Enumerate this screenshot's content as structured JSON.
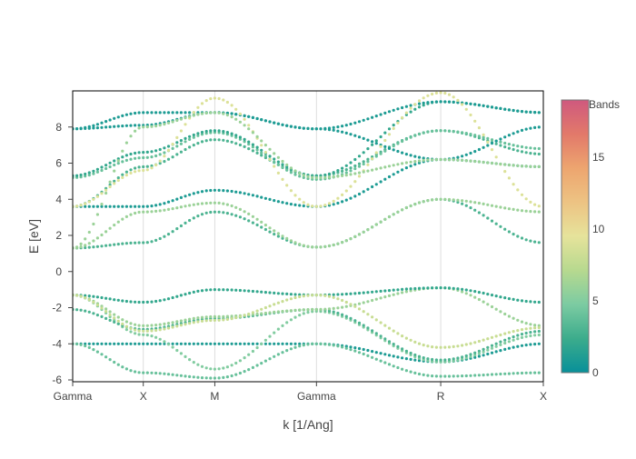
{
  "chart_data": {
    "type": "scatter",
    "title": "",
    "xlabel": "k [1/Ang]",
    "ylabel": "E [eV]",
    "ylim": [
      -6.1,
      10.0
    ],
    "yticks": [
      -6,
      -4,
      -2,
      0,
      2,
      4,
      6,
      8
    ],
    "xticks": [
      {
        "label": "Gamma",
        "k": 0.0
      },
      {
        "label": "X",
        "k": 0.15
      },
      {
        "label": "M",
        "k": 0.302
      },
      {
        "label": "Gamma",
        "k": 0.518
      },
      {
        "label": "R",
        "k": 0.782
      },
      {
        "label": "X",
        "k": 1.0
      }
    ],
    "grid": "vertical at high-symmetry points",
    "colorbar": {
      "title": "Bands",
      "range": [
        0,
        19
      ],
      "ticks": [
        0,
        5,
        10,
        15
      ],
      "colorscale": [
        "#089099",
        "#3cac8c",
        "#7ccba2",
        "#b7d98f",
        "#e6e39b",
        "#edc383",
        "#eda56f",
        "#e2796a",
        "#cf597e"
      ]
    },
    "bands_at_high_symmetry_points": [
      {
        "E": [
          -4.0,
          -4.0,
          -4.0,
          -4.0,
          -5.0,
          -4.0
        ],
        "c": 1
      },
      {
        "E": [
          -4.0,
          -5.6,
          -5.9,
          -4.0,
          -5.8,
          -5.6
        ],
        "c": 4
      },
      {
        "E": [
          -1.3,
          -3.5,
          -5.4,
          -2.2,
          -5.0,
          -3.5
        ],
        "c": 5
      },
      {
        "E": [
          -2.1,
          -3.2,
          -2.6,
          -2.1,
          -4.9,
          -3.3
        ],
        "c": 3
      },
      {
        "E": [
          -1.3,
          -3.0,
          -2.5,
          -2.1,
          -0.9,
          -3.0
        ],
        "c": 6
      },
      {
        "E": [
          -1.3,
          -1.7,
          -1.0,
          -1.3,
          -0.9,
          -1.7
        ],
        "c": 2
      },
      {
        "E": [
          -1.3,
          -3.3,
          -2.7,
          -1.3,
          -4.2,
          -3.1
        ],
        "c": 8
      },
      {
        "E": [
          1.3,
          1.6,
          3.3,
          1.35,
          4.0,
          1.6
        ],
        "c": 3
      },
      {
        "E": [
          1.3,
          3.3,
          3.8,
          1.35,
          4.0,
          3.3
        ],
        "c": 6
      },
      {
        "E": [
          3.6,
          3.6,
          4.5,
          3.6,
          6.2,
          5.8
        ],
        "c": 1
      },
      {
        "E": [
          3.6,
          5.8,
          7.3,
          5.3,
          7.8,
          6.5
        ],
        "c": 3
      },
      {
        "E": [
          5.2,
          6.3,
          7.7,
          5.1,
          7.8,
          6.8
        ],
        "c": 4
      },
      {
        "E": [
          5.3,
          6.6,
          7.8,
          5.3,
          9.4,
          8.8
        ],
        "c": 2
      },
      {
        "E": [
          7.9,
          8.1,
          8.8,
          7.9,
          6.2,
          8.0
        ],
        "c": 1
      },
      {
        "E": [
          7.9,
          8.8,
          8.8,
          7.9,
          9.4,
          8.8
        ],
        "c": 1
      },
      {
        "E": [
          3.6,
          5.6,
          9.6,
          3.6,
          9.9,
          3.6
        ],
        "c": 9
      },
      {
        "E": [
          1.3,
          8.0,
          8.8,
          5.2,
          6.2,
          5.8
        ],
        "c": 6
      }
    ]
  }
}
